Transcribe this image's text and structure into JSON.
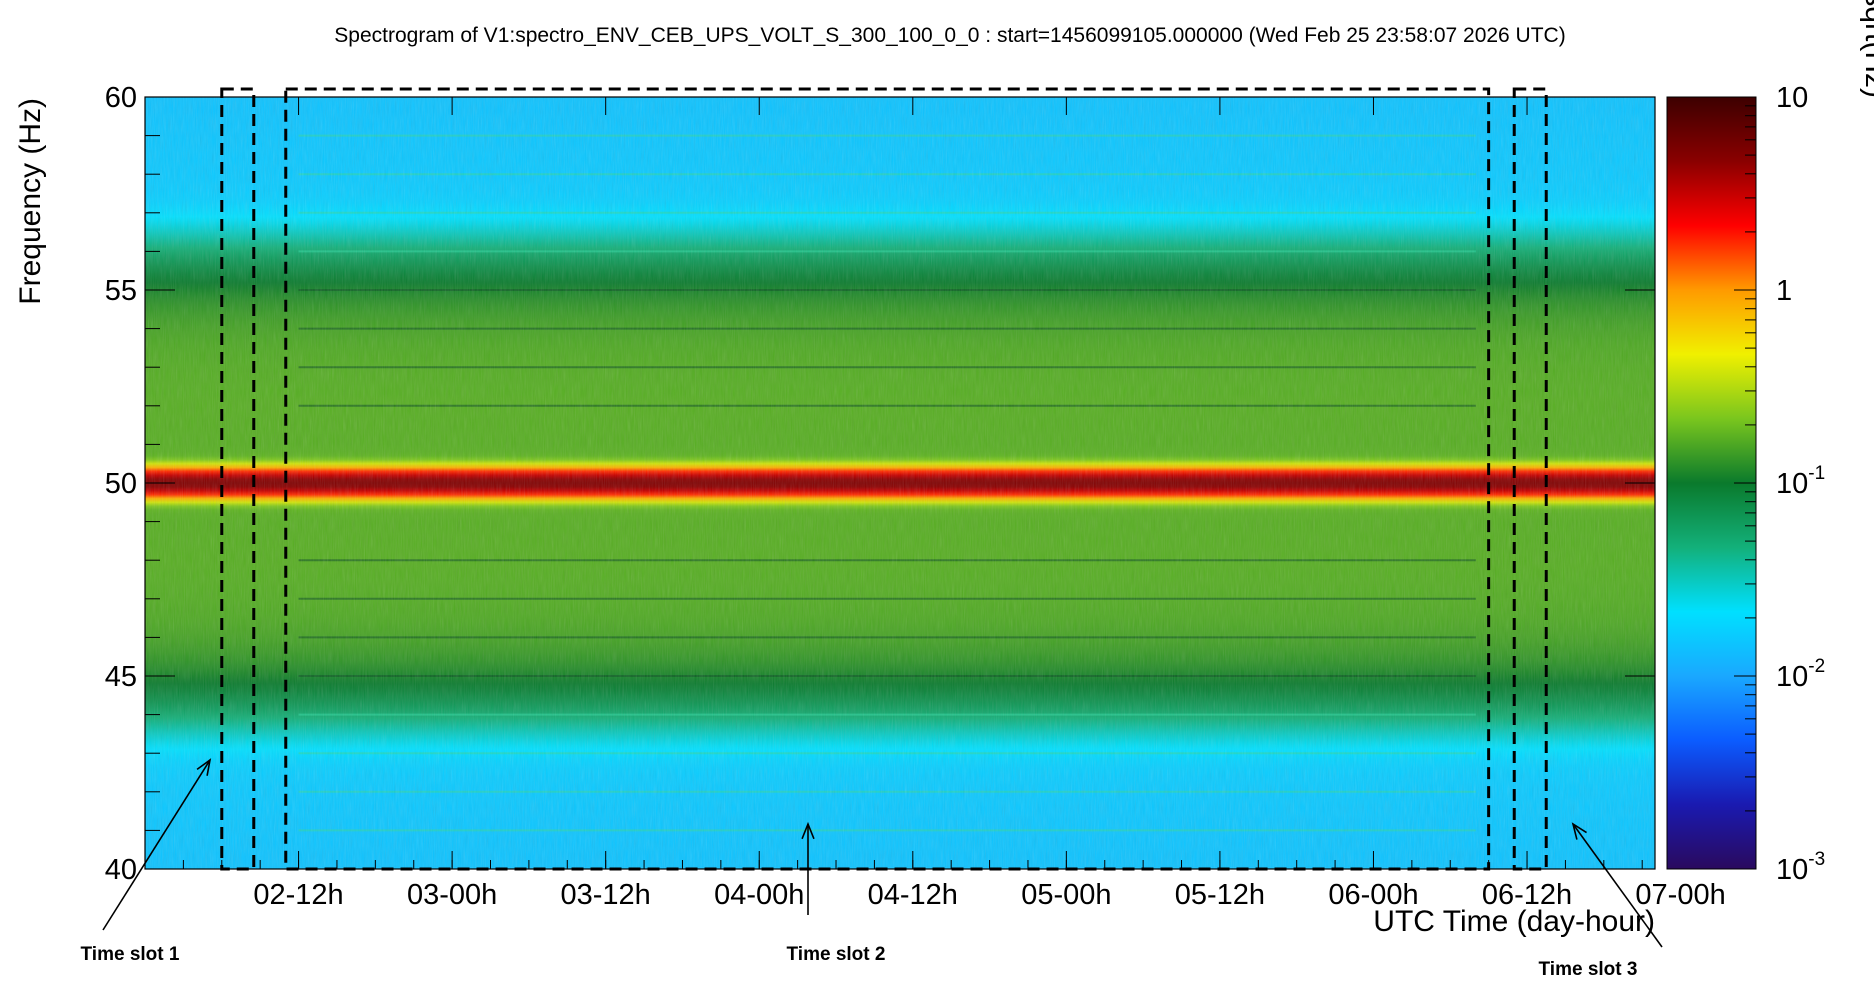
{
  "chart_data": {
    "type": "heatmap",
    "title": "Spectrogram of V1:spectro_ENV_CEB_UPS_VOLT_S_300_100_0_0 : start=1456099105.000000 (Wed Feb 25 23:58:07 2026 UTC)",
    "xlabel": "UTC Time (day-hour)",
    "ylabel": "Frequency (Hz)",
    "colorbar_label": "V/sqrt(Hz)",
    "x_range_hours": [
      0,
      118
    ],
    "y_range_hz": [
      40,
      60
    ],
    "x_ticks": [
      {
        "label": "02-12h",
        "hours": 12
      },
      {
        "label": "03-00h",
        "hours": 24
      },
      {
        "label": "03-12h",
        "hours": 36
      },
      {
        "label": "04-00h",
        "hours": 48
      },
      {
        "label": "04-12h",
        "hours": 60
      },
      {
        "label": "05-00h",
        "hours": 72
      },
      {
        "label": "05-12h",
        "hours": 84
      },
      {
        "label": "06-00h",
        "hours": 96
      },
      {
        "label": "06-12h",
        "hours": 108
      },
      {
        "label": "07-00h",
        "hours": 120
      }
    ],
    "y_ticks": [
      {
        "label": "40",
        "value": 40
      },
      {
        "label": "45",
        "value": 45
      },
      {
        "label": "50",
        "value": 50
      },
      {
        "label": "55",
        "value": 55
      },
      {
        "label": "60",
        "value": 60
      }
    ],
    "colorbar_range": [
      0.001,
      10
    ],
    "colorbar_scale": "log",
    "colorbar_ticks": [
      {
        "base": "10",
        "exp": "",
        "value": 10
      },
      {
        "base": "1",
        "exp": "",
        "value": 1
      },
      {
        "base": "10",
        "exp": "-1",
        "value": 0.1
      },
      {
        "base": "10",
        "exp": "-2",
        "value": 0.01
      },
      {
        "base": "10",
        "exp": "-3",
        "value": 0.001
      }
    ],
    "features": {
      "main_line_hz": 50,
      "main_line_amplitude": 5,
      "broadband_band_hz": [
        45.5,
        54.5
      ],
      "broadband_amplitude": 0.15,
      "background_amplitude": 0.02,
      "harmonic_lines_hz": [
        41,
        42,
        43,
        44,
        45,
        46,
        47,
        48,
        52,
        53,
        54,
        55,
        56,
        57,
        58,
        59
      ]
    },
    "time_slots": [
      {
        "label": "Time slot 1",
        "start_hours": 6,
        "end_hours": 8.5
      },
      {
        "label": "Time slot 2",
        "start_hours": 11,
        "end_hours": 105
      },
      {
        "label": "Time slot 3",
        "start_hours": 107,
        "end_hours": 109.5
      }
    ],
    "colors": {
      "colormap": [
        "#2a0a5e",
        "#1a1ab0",
        "#0b5cff",
        "#1aa8ff",
        "#00e0ff",
        "#13b07a",
        "#0a7a2c",
        "#7ac61e",
        "#f0f000",
        "#ff9a00",
        "#ff0000",
        "#8a0000",
        "#3d0000"
      ]
    }
  }
}
